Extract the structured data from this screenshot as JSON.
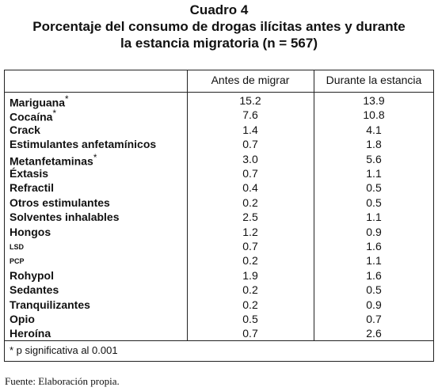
{
  "title": {
    "line1": "Cuadro 4",
    "line2": "Porcentaje del consumo de drogas ilícitas antes y durante",
    "line3": "la estancia migratoria (n = 567)"
  },
  "table": {
    "columns": [
      "",
      "Antes de migrar",
      "Durante la estancia"
    ],
    "rows": [
      {
        "name": "Mariguana",
        "mark": "*",
        "before": "15.2",
        "during": "13.9"
      },
      {
        "name": "Cocaína",
        "mark": "*",
        "before": "7.6",
        "during": "10.8"
      },
      {
        "name": "Crack",
        "mark": "",
        "before": "1.4",
        "during": "4.1"
      },
      {
        "name": "Estimulantes anfetamínicos",
        "mark": "",
        "before": "0.7",
        "during": "1.8"
      },
      {
        "name": "Metanfetaminas",
        "mark": "*",
        "before": "3.0",
        "during": "5.6"
      },
      {
        "name": "Éxtasis",
        "mark": "",
        "before": "0.7",
        "during": "1.1"
      },
      {
        "name": "Refractil",
        "mark": "",
        "before": "0.4",
        "during": "0.5"
      },
      {
        "name": "Otros estimulantes",
        "mark": "",
        "before": "0.2",
        "during": "0.5"
      },
      {
        "name": "Solventes inhalables",
        "mark": "",
        "before": "2.5",
        "during": "1.1"
      },
      {
        "name": "Hongos",
        "mark": "",
        "before": "1.2",
        "during": "0.9"
      },
      {
        "name": "LSD",
        "mark": "",
        "before": "0.7",
        "during": "1.6"
      },
      {
        "name": "PCP",
        "mark": "",
        "before": "0.2",
        "during": "1.1"
      },
      {
        "name": "Rohypol",
        "mark": "",
        "before": "1.9",
        "during": "1.6"
      },
      {
        "name": "Sedantes",
        "mark": "",
        "before": "0.2",
        "during": "0.5"
      },
      {
        "name": "Tranquilizantes",
        "mark": "",
        "before": "0.2",
        "during": "0.9"
      },
      {
        "name": "Opio",
        "mark": "",
        "before": "0.5",
        "during": "0.7"
      },
      {
        "name": "Heroína",
        "mark": "",
        "before": "0.7",
        "during": "2.6"
      }
    ],
    "footnote": "* p significativa al 0.001"
  },
  "source": "Fuente: Elaboración propia."
}
